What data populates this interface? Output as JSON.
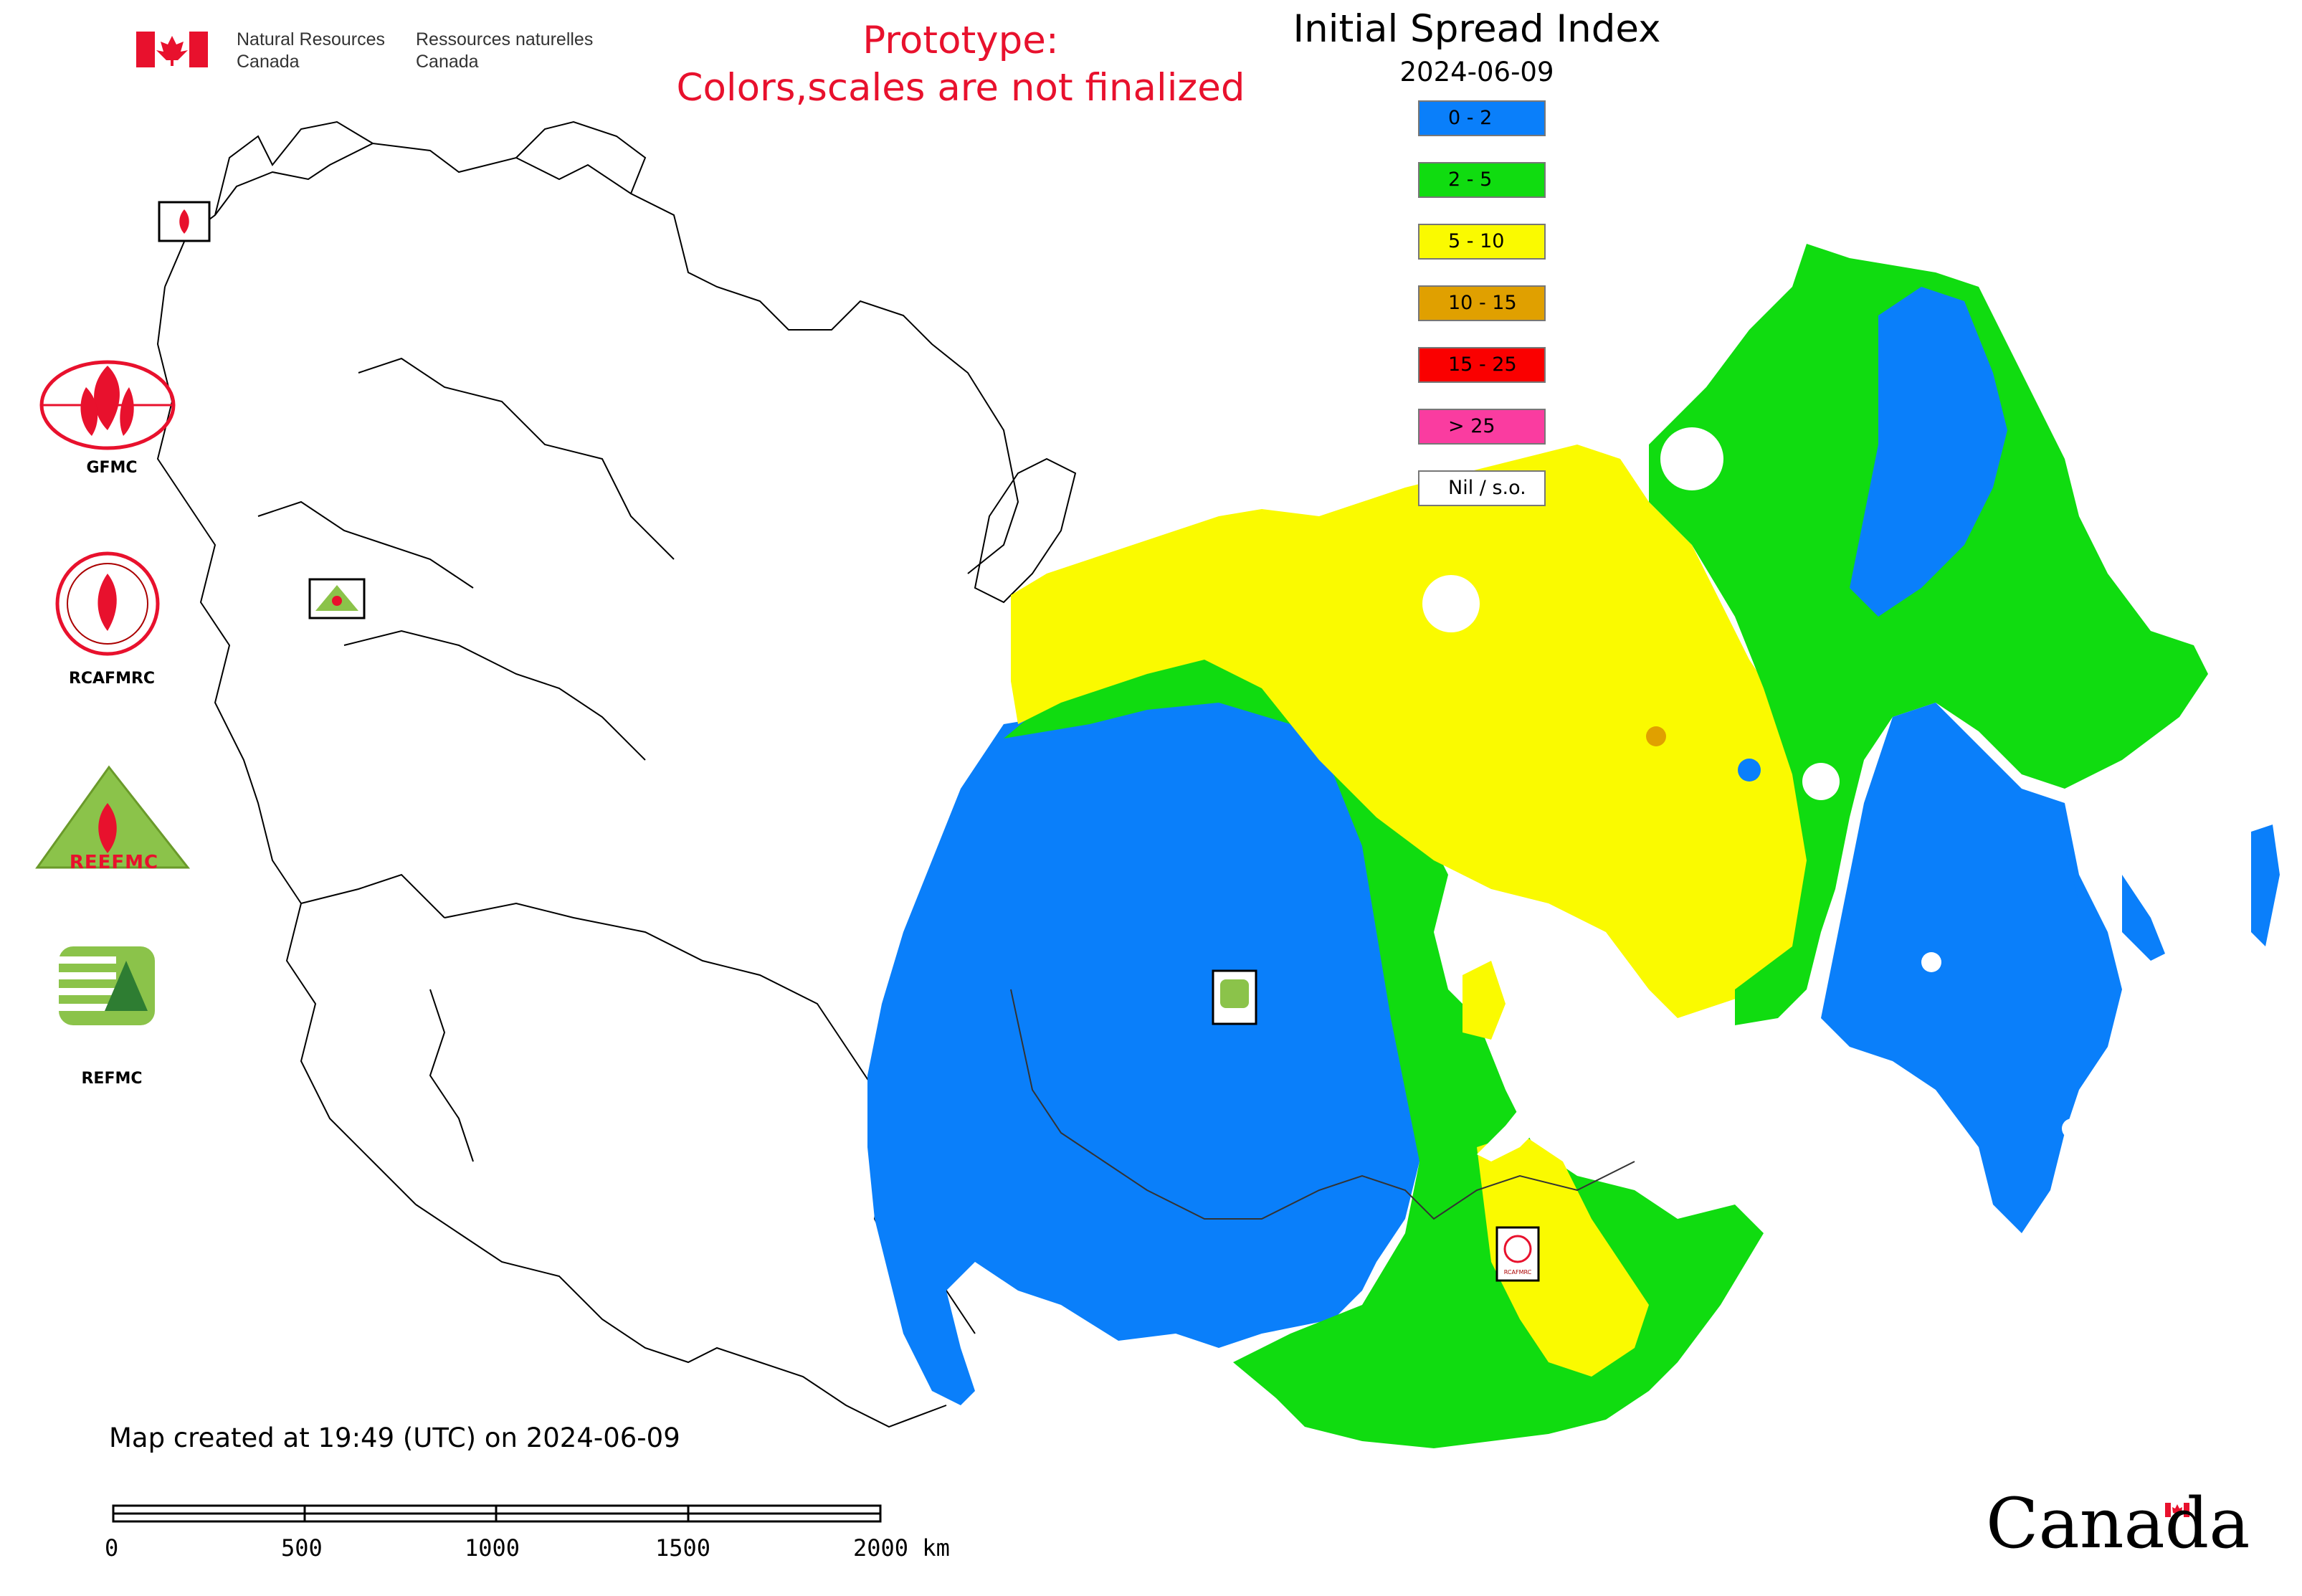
{
  "header": {
    "agency_en": [
      "Natural Resources",
      "Canada"
    ],
    "agency_fr": [
      "Ressources naturelles",
      "Canada"
    ],
    "prototype_note": [
      "Prototype:",
      "Colors,scales are not finalized"
    ]
  },
  "map": {
    "title": "Initial Spread Index",
    "date": "2024-06-09",
    "legend": [
      {
        "label": "0 - 2",
        "color": "#0a7ffa"
      },
      {
        "label": "2 - 5",
        "color": "#10dc10"
      },
      {
        "label": "5 - 10",
        "color": "#fafa00"
      },
      {
        "label": "10 - 15",
        "color": "#e0a000"
      },
      {
        "label": "15 - 25",
        "color": "#fa0000"
      },
      {
        "label": "> 25",
        "color": "#fa3ca0"
      },
      {
        "label": "Nil / s.o.",
        "color": "#ffffff"
      }
    ]
  },
  "logos": {
    "gfmc": "GFMC",
    "rcafmrc": "RCAFMRC",
    "reefmc": "REEFMC",
    "refmc": "REFMC",
    "rcafmrc_badge": "RCAFMRC",
    "reefmc_badge": "REEFMC"
  },
  "footer": {
    "created": "Map created at 19:49 (UTC) on 2024-06-09",
    "scale": [
      "0",
      "500",
      "1000",
      "1500",
      "2000 km"
    ],
    "wordmark": "Canada"
  }
}
